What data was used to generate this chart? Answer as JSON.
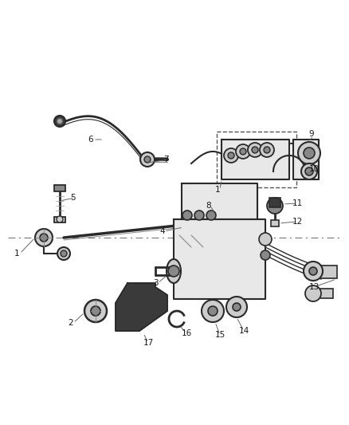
{
  "bg_color": "#ffffff",
  "fig_width": 4.38,
  "fig_height": 5.33,
  "dpi": 100,
  "line_color": "#2a2a2a",
  "label_color": "#1a1a1a",
  "fill_dark": "#3a3a3a",
  "fill_mid": "#888888",
  "fill_light": "#cccccc",
  "fill_lighter": "#e8e8e8",
  "centerline_color": "#777777",
  "label_fs": 7.5,
  "leader_lw": 0.7,
  "leader_color": "#666666"
}
